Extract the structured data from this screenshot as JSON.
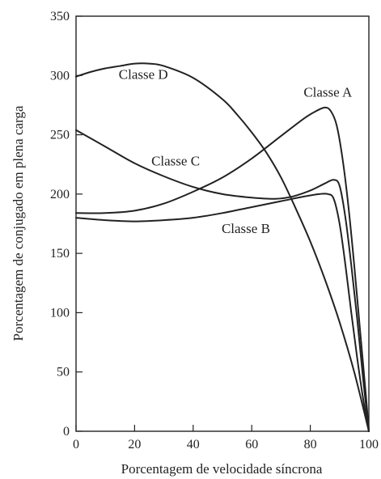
{
  "chart_data": {
    "type": "line",
    "title": "",
    "xlabel": "Porcentagem de velocidade síncrona",
    "ylabel": "Porcentagem de conjugado em plena carga",
    "xlim": [
      0,
      100
    ],
    "ylim": [
      0,
      350
    ],
    "xticks": [
      0,
      20,
      40,
      60,
      80,
      100
    ],
    "yticks": [
      0,
      50,
      100,
      150,
      200,
      250,
      300,
      350
    ],
    "grid": false,
    "legend": "none",
    "series": [
      {
        "name": "Classe A",
        "label_at": [
          86,
          282
        ],
        "points": [
          [
            0,
            184
          ],
          [
            10,
            184
          ],
          [
            20,
            186
          ],
          [
            30,
            192
          ],
          [
            40,
            202
          ],
          [
            50,
            214
          ],
          [
            60,
            230
          ],
          [
            70,
            249
          ],
          [
            78,
            264
          ],
          [
            82,
            270
          ],
          [
            85,
            273
          ],
          [
            87,
            270
          ],
          [
            89,
            258
          ],
          [
            91,
            230
          ],
          [
            93,
            190
          ],
          [
            95,
            140
          ],
          [
            97,
            85
          ],
          [
            99,
            30
          ],
          [
            100,
            0
          ]
        ]
      },
      {
        "name": "Classe B",
        "label_at": [
          58,
          167
        ],
        "points": [
          [
            0,
            180
          ],
          [
            10,
            178
          ],
          [
            20,
            177
          ],
          [
            30,
            178
          ],
          [
            40,
            180
          ],
          [
            50,
            184
          ],
          [
            60,
            189
          ],
          [
            70,
            194
          ],
          [
            78,
            198
          ],
          [
            83,
            200
          ],
          [
            86,
            200
          ],
          [
            88,
            196
          ],
          [
            90,
            175
          ],
          [
            92,
            140
          ],
          [
            94,
            100
          ],
          [
            96,
            62
          ],
          [
            98,
            28
          ],
          [
            100,
            0
          ]
        ]
      },
      {
        "name": "Classe C",
        "label_at": [
          34,
          224
        ],
        "points": [
          [
            0,
            254
          ],
          [
            10,
            240
          ],
          [
            20,
            226
          ],
          [
            30,
            215
          ],
          [
            40,
            206
          ],
          [
            50,
            200
          ],
          [
            60,
            197
          ],
          [
            68,
            196
          ],
          [
            74,
            198
          ],
          [
            80,
            203
          ],
          [
            85,
            209
          ],
          [
            88,
            212
          ],
          [
            90,
            207
          ],
          [
            92,
            180
          ],
          [
            94,
            140
          ],
          [
            96,
            95
          ],
          [
            98,
            45
          ],
          [
            100,
            0
          ]
        ]
      },
      {
        "name": "Classe D",
        "label_at": [
          23,
          297
        ],
        "points": [
          [
            0,
            299
          ],
          [
            5,
            303
          ],
          [
            10,
            306
          ],
          [
            15,
            308
          ],
          [
            20,
            310
          ],
          [
            25,
            310
          ],
          [
            30,
            308
          ],
          [
            40,
            298
          ],
          [
            50,
            280
          ],
          [
            55,
            267
          ],
          [
            60,
            252
          ],
          [
            65,
            235
          ],
          [
            70,
            214
          ],
          [
            75,
            188
          ],
          [
            80,
            160
          ],
          [
            85,
            128
          ],
          [
            90,
            92
          ],
          [
            95,
            50
          ],
          [
            100,
            0
          ]
        ]
      }
    ]
  }
}
